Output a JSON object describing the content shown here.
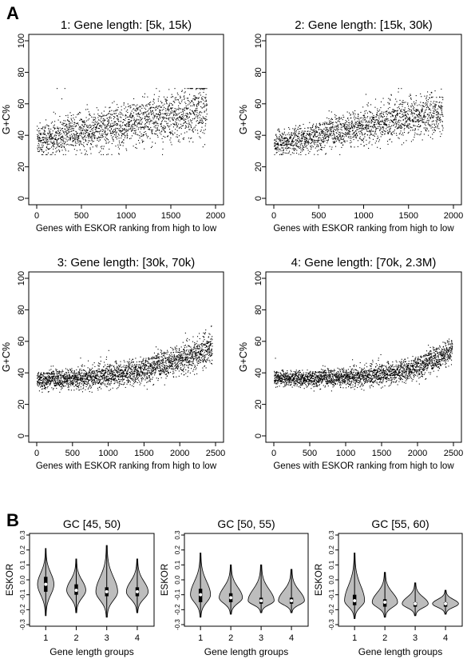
{
  "panel_a_letter": "A",
  "panel_b_letter": "B",
  "chart_data": [
    {
      "type": "scatter",
      "title": "1: Gene length: [5k, 15k)",
      "xlabel": "Genes with ESKOR ranking from high to low",
      "ylabel": "G+C%",
      "xlim": [
        0,
        2000
      ],
      "ylim": [
        0,
        100
      ],
      "xticks": [
        0,
        500,
        1000,
        1500,
        2000
      ],
      "yticks": [
        0,
        20,
        40,
        60,
        80,
        100
      ],
      "n_points": 1900,
      "trend": {
        "start": 37,
        "end": 57
      },
      "spread": 9,
      "point_color": "#000000"
    },
    {
      "type": "scatter",
      "title": "2: Gene length: [15k, 30k)",
      "xlabel": "Genes with ESKOR ranking from high to low",
      "ylabel": "G+C%",
      "xlim": [
        0,
        2000
      ],
      "ylim": [
        0,
        100
      ],
      "xticks": [
        0,
        500,
        1000,
        1500,
        2000
      ],
      "yticks": [
        0,
        20,
        40,
        60,
        80,
        100
      ],
      "n_points": 1880,
      "trend": {
        "start": 35,
        "end": 56
      },
      "spread": 7,
      "point_color": "#000000"
    },
    {
      "type": "scatter",
      "title": "3: Gene length: [30k, 70k)",
      "xlabel": "Genes with ESKOR ranking from high to low",
      "ylabel": "G+C%",
      "xlim": [
        0,
        2500
      ],
      "ylim": [
        0,
        100
      ],
      "xticks": [
        0,
        500,
        1000,
        1500,
        2000,
        2500
      ],
      "yticks": [
        0,
        20,
        40,
        60,
        80,
        100
      ],
      "n_points": 2450,
      "trend": {
        "start": 36,
        "end": 56,
        "curvature": 2.2
      },
      "spread": 5,
      "point_color": "#000000"
    },
    {
      "type": "scatter",
      "title": "4: Gene length: [70k, 2.3M)",
      "xlabel": "Genes with ESKOR ranking from high to low",
      "ylabel": "G+C%",
      "xlim": [
        0,
        2500
      ],
      "ylim": [
        0,
        100
      ],
      "xticks": [
        0,
        500,
        1000,
        1500,
        2000,
        2500
      ],
      "yticks": [
        0,
        20,
        40,
        60,
        80,
        100
      ],
      "n_points": 2480,
      "trend": {
        "start": 37,
        "end": 55,
        "curvature": 4
      },
      "spread": 4,
      "point_color": "#000000"
    },
    {
      "type": "violin",
      "title": "GC [45, 50)",
      "xlabel": "Gene length groups",
      "ylabel": "ESKOR",
      "categories": [
        "1",
        "2",
        "3",
        "4"
      ],
      "ylim": [
        -0.3,
        0.3
      ],
      "yticks": [
        -0.3,
        -0.2,
        -0.1,
        0.0,
        0.1,
        0.2,
        0.3
      ],
      "ytick_labels": [
        "-0.3",
        "-0.2",
        "-0.1",
        "0.0",
        "0.1",
        "0.2",
        "0.3"
      ],
      "fill_color": "#bdbdbd",
      "groups": [
        {
          "min": -0.24,
          "max": 0.21,
          "q1": -0.08,
          "median": -0.03,
          "q3": 0.02,
          "mode": -0.03,
          "width": 0.23
        },
        {
          "min": -0.22,
          "max": 0.14,
          "q1": -0.1,
          "median": -0.07,
          "q3": -0.03,
          "mode": -0.07,
          "width": 0.28
        },
        {
          "min": -0.25,
          "max": 0.23,
          "q1": -0.11,
          "median": -0.08,
          "q3": -0.05,
          "mode": -0.08,
          "width": 0.33
        },
        {
          "min": -0.22,
          "max": 0.14,
          "q1": -0.11,
          "median": -0.08,
          "q3": -0.05,
          "mode": -0.08,
          "width": 0.33
        }
      ]
    },
    {
      "type": "violin",
      "title": "GC [50, 55)",
      "xlabel": "Gene length groups",
      "ylabel": "ESKOR",
      "categories": [
        "1",
        "2",
        "3",
        "4"
      ],
      "ylim": [
        -0.3,
        0.3
      ],
      "yticks": [
        -0.3,
        -0.2,
        -0.1,
        0.0,
        0.1,
        0.2,
        0.3
      ],
      "ytick_labels": [
        "-0.3",
        "-0.2",
        "-0.1",
        "0.0",
        "0.1",
        "0.2",
        "0.3"
      ],
      "fill_color": "#bdbdbd",
      "groups": [
        {
          "min": -0.25,
          "max": 0.18,
          "q1": -0.15,
          "median": -0.1,
          "q3": -0.06,
          "mode": -0.1,
          "width": 0.3
        },
        {
          "min": -0.23,
          "max": 0.1,
          "q1": -0.15,
          "median": -0.12,
          "q3": -0.09,
          "mode": -0.12,
          "width": 0.36
        },
        {
          "min": -0.22,
          "max": 0.1,
          "q1": -0.16,
          "median": -0.14,
          "q3": -0.12,
          "mode": -0.14,
          "width": 0.42
        },
        {
          "min": -0.22,
          "max": 0.07,
          "q1": -0.16,
          "median": -0.14,
          "q3": -0.12,
          "mode": -0.14,
          "width": 0.42
        }
      ]
    },
    {
      "type": "violin",
      "title": "GC [55, 60)",
      "xlabel": "Gene length groups",
      "ylabel": "ESKOR",
      "categories": [
        "1",
        "2",
        "3",
        "4"
      ],
      "ylim": [
        -0.3,
        0.3
      ],
      "yticks": [
        -0.3,
        -0.2,
        -0.1,
        0.0,
        0.1,
        0.2,
        0.3
      ],
      "ytick_labels": [
        "-0.3",
        "-0.2",
        "-0.1",
        "0.0",
        "0.1",
        "0.2",
        "0.3"
      ],
      "fill_color": "#bdbdbd",
      "groups": [
        {
          "min": -0.26,
          "max": 0.18,
          "q1": -0.17,
          "median": -0.14,
          "q3": -0.1,
          "mode": -0.14,
          "width": 0.3
        },
        {
          "min": -0.25,
          "max": 0.05,
          "q1": -0.18,
          "median": -0.15,
          "q3": -0.13,
          "mode": -0.15,
          "width": 0.4
        },
        {
          "min": -0.24,
          "max": -0.02,
          "q1": -0.18,
          "median": -0.16,
          "q3": -0.15,
          "mode": -0.16,
          "width": 0.44
        },
        {
          "min": -0.23,
          "max": -0.07,
          "q1": -0.18,
          "median": -0.16,
          "q3": -0.15,
          "mode": -0.16,
          "width": 0.46
        }
      ]
    }
  ]
}
